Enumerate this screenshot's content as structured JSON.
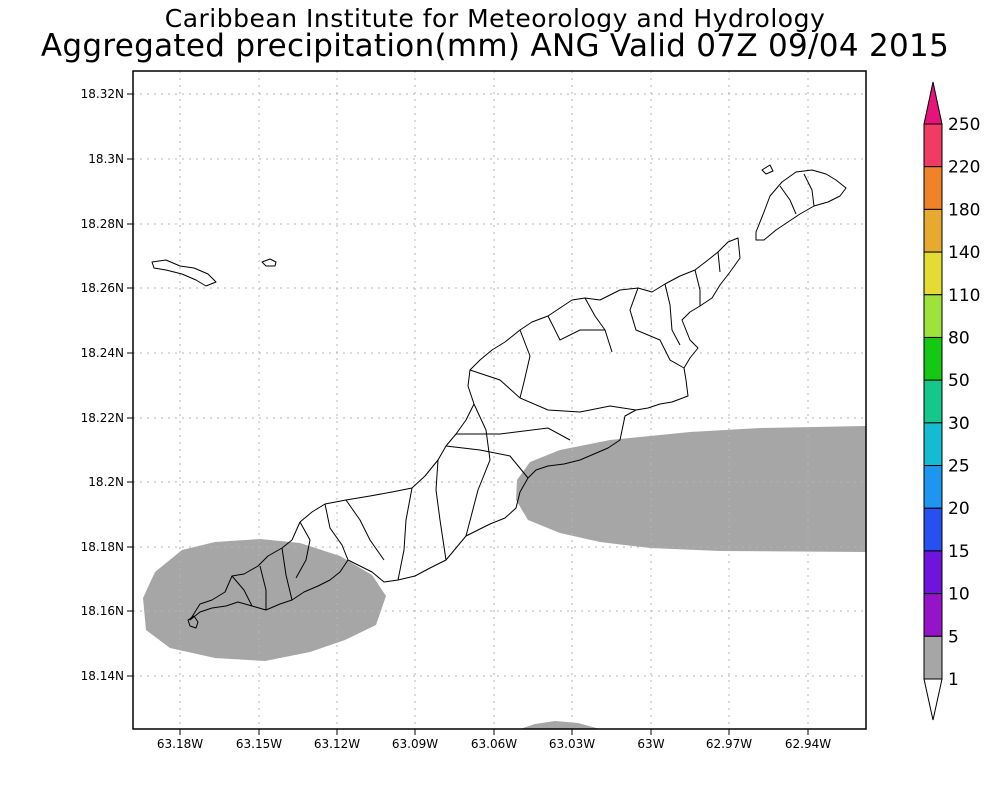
{
  "header": {
    "institution": "Caribbean Institute for Meteorology and Hydrology",
    "product": "Aggregated precipitation(mm) ANG Valid 07Z 09/04 2015"
  },
  "map": {
    "lon_ticks": [
      "63.18W",
      "63.15W",
      "63.12W",
      "63.09W",
      "63.06W",
      "63.03W",
      "63W",
      "62.97W",
      "62.94W"
    ],
    "lat_ticks": [
      "18.32N",
      "18.3N",
      "18.28N",
      "18.26N",
      "18.24N",
      "18.22N",
      "18.2N",
      "18.18N",
      "18.16N",
      "18.14N"
    ],
    "grid": true,
    "rain_areas": [
      {
        "name": "south-east band",
        "category": "1-5"
      },
      {
        "name": "south-west blob",
        "category": "1-5"
      },
      {
        "name": "bottom sliver",
        "category": "1-5"
      }
    ],
    "rain_color": "#a6a6a6"
  },
  "legend": {
    "labels": [
      "250",
      "220",
      "180",
      "140",
      "110",
      "80",
      "50",
      "30",
      "25",
      "20",
      "15",
      "10",
      "5",
      "1"
    ],
    "colors": [
      "#f03c64",
      "#f0822a",
      "#e6aa30",
      "#e4dc32",
      "#9ee23c",
      "#14c814",
      "#14c88c",
      "#14bcd2",
      "#1e96f0",
      "#2850f0",
      "#6e14dc",
      "#9614c8",
      "#a6a6a6"
    ],
    "top_color": "#e6147a"
  }
}
